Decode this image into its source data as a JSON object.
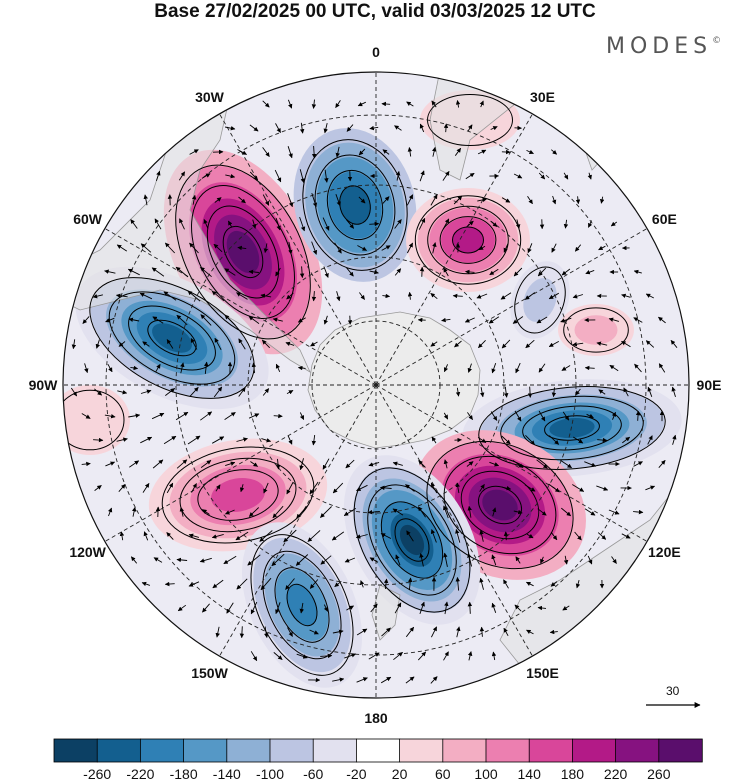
{
  "title": "Base 27/02/2025 00 UTC, valid 03/03/2025 12 UTC",
  "brand": "MODES",
  "brand_mark": "©",
  "longitude_labels": [
    {
      "text": "0",
      "lon": 0
    },
    {
      "text": "30E",
      "lon": 30
    },
    {
      "text": "60E",
      "lon": 60
    },
    {
      "text": "90E",
      "lon": 90
    },
    {
      "text": "120E",
      "lon": 120
    },
    {
      "text": "150E",
      "lon": 150
    },
    {
      "text": "180",
      "lon": 180
    },
    {
      "text": "150W",
      "lon": -150
    },
    {
      "text": "120W",
      "lon": -120
    },
    {
      "text": "90W",
      "lon": -90
    },
    {
      "text": "60W",
      "lon": -60
    },
    {
      "text": "30W",
      "lon": -30
    }
  ],
  "reference_vector": {
    "value": "30"
  },
  "colorbar": {
    "colors": [
      "#0c4064",
      "#135f8f",
      "#2f80b5",
      "#5598c6",
      "#8eb0d5",
      "#bcc5e2",
      "#e2e1ef",
      "#ffffff",
      "#f7d5db",
      "#f3aec3",
      "#ec7fb0",
      "#d9469a",
      "#b31a87",
      "#861280",
      "#5a0e6c"
    ],
    "tick_labels": [
      "-260",
      "-220",
      "-180",
      "-140",
      "-100",
      "-60",
      "-20",
      "20",
      "60",
      "100",
      "140",
      "180",
      "220",
      "260"
    ]
  },
  "map_colors": {
    "land": "#e3e3e3",
    "coast": "#999999",
    "grid": "#222222",
    "contour": "#000000"
  },
  "anomaly_centers": [
    {
      "sign": "positive",
      "value": 260,
      "region": "South Atlantic / east of South America"
    },
    {
      "sign": "negative",
      "value": -220,
      "region": "South Atlantic near 0"
    },
    {
      "sign": "positive",
      "value": 180,
      "region": "Southwest Indian Ocean"
    },
    {
      "sign": "negative",
      "value": -220,
      "region": "Southeast Pacific west of South America"
    },
    {
      "sign": "negative",
      "value": -220,
      "region": "Southeast Indian Ocean near 90E"
    },
    {
      "sign": "positive",
      "value": 260,
      "region": "South of Australia"
    },
    {
      "sign": "negative",
      "value": -220,
      "region": "South of New Zealand"
    },
    {
      "sign": "positive",
      "value": 180,
      "region": "South Pacific near 120W"
    },
    {
      "sign": "negative",
      "value": -140,
      "region": "South Pacific near 150W"
    }
  ]
}
